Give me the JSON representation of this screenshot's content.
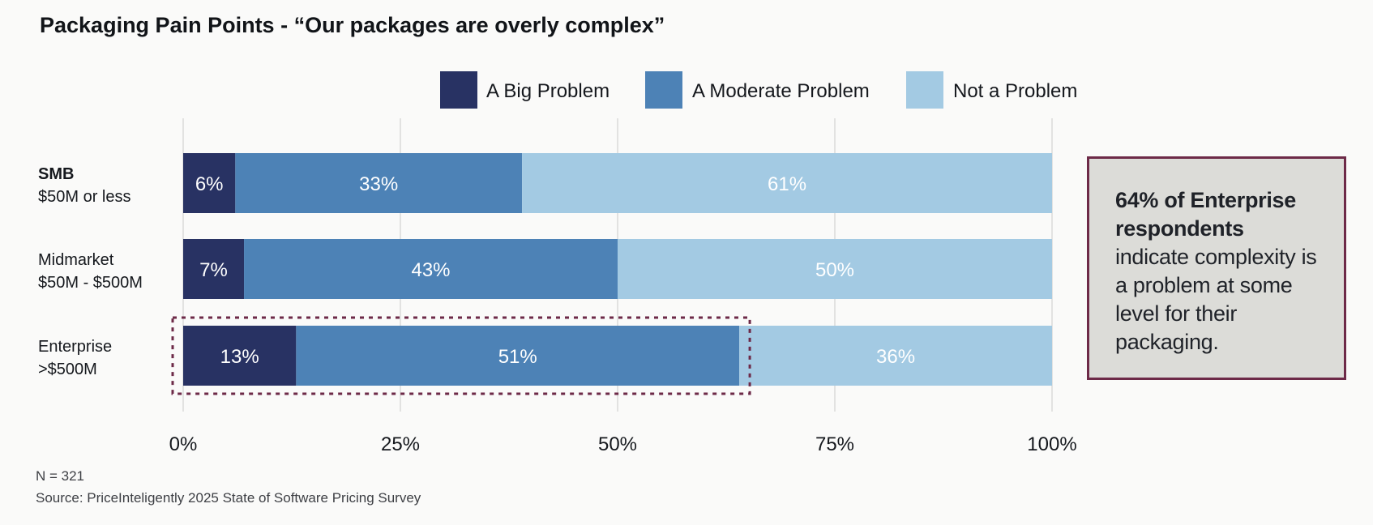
{
  "chart_data": {
    "type": "bar",
    "orientation": "horizontal",
    "stacked": true,
    "title": "Packaging Pain Points - “Our packages are overly complex”",
    "categories": [
      {
        "name": "SMB",
        "sub": "$50M or less"
      },
      {
        "name": "Midmarket",
        "sub": "$50M - $500M"
      },
      {
        "name": "Enterprise",
        "sub": ">$500M"
      }
    ],
    "series": [
      {
        "name": "A Big Problem",
        "color": "#283263",
        "values": [
          6,
          7,
          13
        ],
        "labels": [
          "6%",
          "7%",
          "13%"
        ]
      },
      {
        "name": "A Moderate Problem",
        "color": "#4d82b6",
        "values": [
          33,
          43,
          51
        ],
        "labels": [
          "33%",
          "43%",
          "51%"
        ]
      },
      {
        "name": "Not a Problem",
        "color": "#a3cae3",
        "values": [
          61,
          50,
          36
        ],
        "labels": [
          "61%",
          "50%",
          "36%"
        ]
      }
    ],
    "xlim": [
      0,
      100
    ],
    "xticks": [
      0,
      25,
      50,
      75,
      100
    ],
    "xtick_labels": [
      "0%",
      "25%",
      "50%",
      "75%",
      "100%"
    ],
    "grid": true,
    "legend_position": "top",
    "highlight": {
      "category_index": 2,
      "series_indices": [
        0,
        1
      ],
      "style": "dashed",
      "color": "#6d2a48"
    }
  },
  "callout": {
    "bold_text": "64% of Enterprise respondents",
    "text": "indicate complexity is a problem at some level for their packaging."
  },
  "footnotes": {
    "n": "N = 321",
    "source": "Source: PriceInteligently 2025 State of Software Pricing Survey"
  }
}
